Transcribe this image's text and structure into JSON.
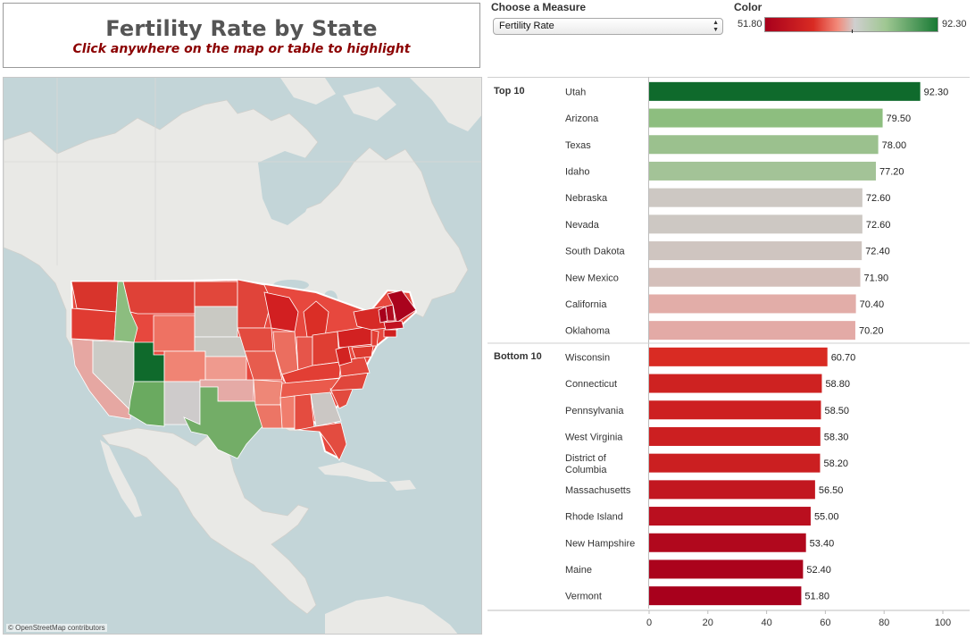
{
  "header": {
    "title": "Fertility Rate by State",
    "subtitle": "Click anywhere on the map or table to highlight"
  },
  "controls": {
    "measure_label": "Choose a Measure",
    "measure_value": "Fertility Rate",
    "color_label": "Color",
    "color_min": "51.80",
    "color_max": "92.30"
  },
  "map": {
    "credit": "© OpenStreetMap contributors"
  },
  "chart_data": {
    "type": "bar",
    "orientation": "horizontal",
    "measure": "Fertility Rate",
    "xlim": [
      0,
      100
    ],
    "x_ticks": [
      0,
      20,
      40,
      60,
      80,
      100
    ],
    "color_range": [
      51.8,
      92.3
    ],
    "colors": {
      "low": "#a8001c",
      "mid_low": "#d92b23",
      "light_red": "#e5a8a4",
      "neutral": "#cbcbc6",
      "light_green": "#8fbf80",
      "high": "#0f6a2c"
    },
    "groups": [
      {
        "label": "Top 10",
        "items": [
          {
            "state": "Utah",
            "value": 92.3
          },
          {
            "state": "Arizona",
            "value": 79.5
          },
          {
            "state": "Texas",
            "value": 78.0
          },
          {
            "state": "Idaho",
            "value": 77.2
          },
          {
            "state": "Nebraska",
            "value": 72.6
          },
          {
            "state": "Nevada",
            "value": 72.6
          },
          {
            "state": "South Dakota",
            "value": 72.4
          },
          {
            "state": "New Mexico",
            "value": 71.9
          },
          {
            "state": "California",
            "value": 70.4
          },
          {
            "state": "Oklahoma",
            "value": 70.2
          }
        ]
      },
      {
        "label": "Bottom 10",
        "items": [
          {
            "state": "Wisconsin",
            "value": 60.7
          },
          {
            "state": "Connecticut",
            "value": 58.8
          },
          {
            "state": "Pennsylvania",
            "value": 58.5
          },
          {
            "state": "West Virginia",
            "value": 58.3
          },
          {
            "state": "District of Columbia",
            "value": 58.2
          },
          {
            "state": "Massachusetts",
            "value": 56.5
          },
          {
            "state": "Rhode Island",
            "value": 55.0
          },
          {
            "state": "New Hampshire",
            "value": 53.4
          },
          {
            "state": "Maine",
            "value": 52.4
          },
          {
            "state": "Vermont",
            "value": 51.8
          }
        ]
      }
    ]
  }
}
